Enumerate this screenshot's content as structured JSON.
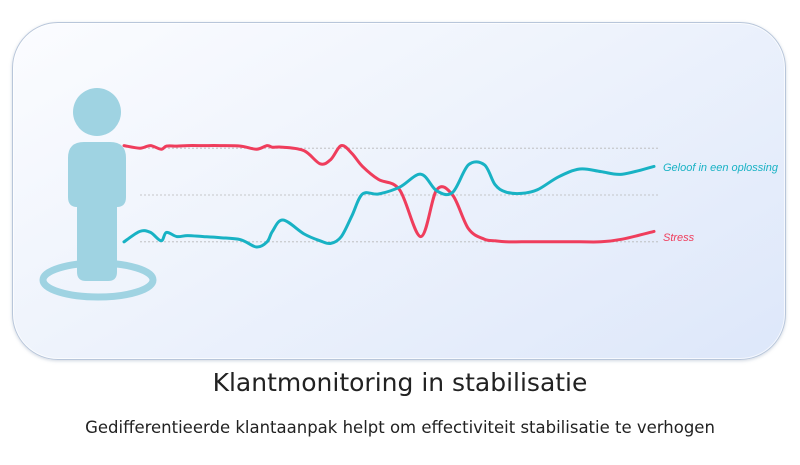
{
  "title": "Klantmonitoring in stabilisatie",
  "subtitle": "Gedifferentieerde klantaanpak helpt om effectiviteit stabilisatie te verhogen",
  "icons": {
    "person": "person-icon",
    "platform": "platform-ring"
  },
  "colors": {
    "person": "#9fd3e2",
    "stress": "#ef3d5c",
    "belief": "#18b2c4",
    "guides": "#b8b8b8"
  },
  "chart_data": {
    "type": "line",
    "x": [
      0,
      0.03,
      0.05,
      0.07,
      0.08,
      0.1,
      0.12,
      0.15,
      0.18,
      0.22,
      0.25,
      0.27,
      0.28,
      0.3,
      0.34,
      0.37,
      0.39,
      0.41,
      0.43,
      0.45,
      0.48,
      0.52,
      0.56,
      0.59,
      0.62,
      0.65,
      0.68,
      0.7,
      0.72,
      0.75,
      0.78,
      0.82,
      0.86,
      0.9,
      0.94,
      1.0
    ],
    "series": [
      {
        "name": "Stress",
        "values": [
          0.95,
          0.9,
          0.95,
          0.88,
          0.94,
          0.94,
          0.95,
          0.95,
          0.95,
          0.94,
          0.88,
          0.95,
          0.92,
          0.92,
          0.85,
          0.6,
          0.68,
          0.95,
          0.8,
          0.55,
          0.3,
          0.1,
          -0.8,
          0.1,
          0.0,
          -0.65,
          -0.85,
          -0.88,
          -0.9,
          -0.9,
          -0.9,
          -0.9,
          -0.9,
          -0.9,
          -0.85,
          -0.7
        ]
      },
      {
        "name": "Geloof in een oplossing",
        "values": [
          -0.9,
          -0.7,
          -0.72,
          -0.88,
          -0.72,
          -0.8,
          -0.78,
          -0.8,
          -0.82,
          -0.86,
          -1.0,
          -0.9,
          -0.7,
          -0.48,
          -0.75,
          -0.88,
          -0.93,
          -0.8,
          -0.4,
          0.02,
          0.02,
          0.15,
          0.4,
          0.08,
          0.05,
          0.58,
          0.58,
          0.2,
          0.06,
          0.03,
          0.1,
          0.35,
          0.5,
          0.45,
          0.4,
          0.55
        ]
      }
    ],
    "guide_levels": [
      0.9,
      0.0,
      -0.9
    ],
    "ylim": [
      -1.1,
      1.1
    ],
    "grid": false,
    "legend": "inline at line ends"
  }
}
